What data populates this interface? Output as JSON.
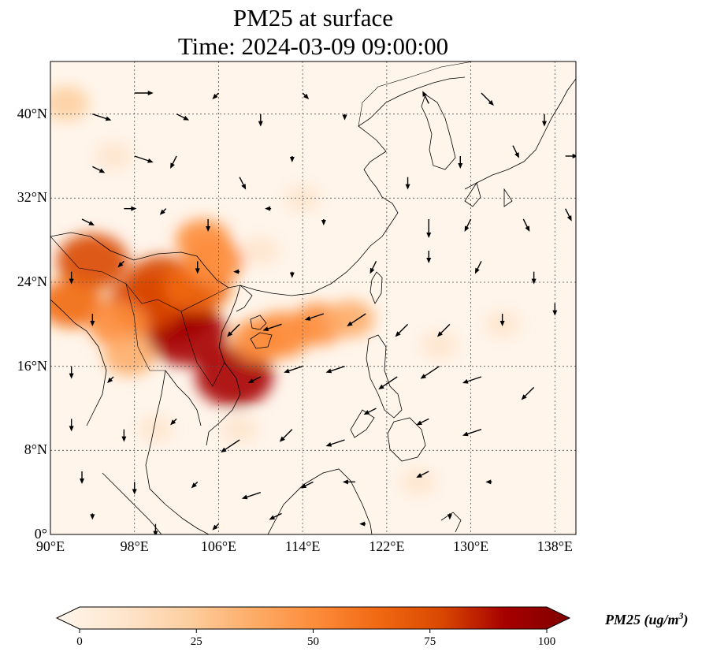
{
  "title": {
    "line1": "PM25 at surface",
    "line2": "Time: 2024-03-09 09:00:00"
  },
  "map": {
    "projection": "PlateCarree",
    "lon_range": [
      90,
      140
    ],
    "lat_range": [
      0,
      45
    ],
    "gridlines": true,
    "lat_ticks": [
      {
        "value": 0,
        "label": "0°"
      },
      {
        "value": 8,
        "label": "8°N"
      },
      {
        "value": 16,
        "label": "16°N"
      },
      {
        "value": 24,
        "label": "24°N"
      },
      {
        "value": 32,
        "label": "32°N"
      },
      {
        "value": 40,
        "label": "40°N"
      }
    ],
    "lon_ticks": [
      {
        "value": 90,
        "label": "90°E"
      },
      {
        "value": 98,
        "label": "98°E"
      },
      {
        "value": 106,
        "label": "106°E"
      },
      {
        "value": 114,
        "label": "114°E"
      },
      {
        "value": 122,
        "label": "122°E"
      },
      {
        "value": 130,
        "label": "130°E"
      },
      {
        "value": 138,
        "label": "138°E"
      }
    ],
    "pm25_plumes": [
      {
        "lon": 101.5,
        "lat": 21.5,
        "value": 100
      },
      {
        "lon": 103.0,
        "lat": 19.0,
        "value": 90
      },
      {
        "lon": 99.0,
        "lat": 22.0,
        "value": 80
      },
      {
        "lon": 100.5,
        "lat": 24.0,
        "value": 70
      },
      {
        "lon": 104.0,
        "lat": 23.5,
        "value": 65
      },
      {
        "lon": 105.5,
        "lat": 26.0,
        "value": 55
      },
      {
        "lon": 104.5,
        "lat": 28.0,
        "value": 45
      },
      {
        "lon": 107.5,
        "lat": 15.0,
        "value": 85
      },
      {
        "lon": 94.0,
        "lat": 26.0,
        "value": 75
      },
      {
        "lon": 92.0,
        "lat": 22.0,
        "value": 60
      },
      {
        "lon": 96.5,
        "lat": 20.0,
        "value": 55
      },
      {
        "lon": 97.5,
        "lat": 17.0,
        "value": 40
      },
      {
        "lon": 112.0,
        "lat": 19.0,
        "value": 55
      },
      {
        "lon": 115.5,
        "lat": 20.0,
        "value": 45
      },
      {
        "lon": 118.5,
        "lat": 20.5,
        "value": 35
      },
      {
        "lon": 110.0,
        "lat": 18.5,
        "value": 50
      },
      {
        "lon": 91.5,
        "lat": 41.0,
        "value": 30
      },
      {
        "lon": 96.0,
        "lat": 36.0,
        "value": 15
      },
      {
        "lon": 110.0,
        "lat": 27.0,
        "value": 15
      },
      {
        "lon": 114.0,
        "lat": 32.0,
        "value": 12
      },
      {
        "lon": 127.0,
        "lat": 18.0,
        "value": 15
      },
      {
        "lon": 133.0,
        "lat": 20.0,
        "value": 12
      },
      {
        "lon": 108.0,
        "lat": 10.0,
        "value": 15
      },
      {
        "lon": 100.0,
        "lat": 10.0,
        "value": 12
      },
      {
        "lon": 125.0,
        "lat": 5.0,
        "value": 12
      }
    ],
    "wind_arrows": [
      {
        "lon": 94,
        "lat": 40,
        "u": 3,
        "v": -1
      },
      {
        "lon": 98,
        "lat": 42,
        "u": 3,
        "v": 0
      },
      {
        "lon": 102,
        "lat": 40,
        "u": 2,
        "v": -1
      },
      {
        "lon": 106,
        "lat": 42,
        "u": -1,
        "v": -1
      },
      {
        "lon": 110,
        "lat": 40,
        "u": 0,
        "v": -2
      },
      {
        "lon": 114,
        "lat": 42,
        "u": 1,
        "v": -1
      },
      {
        "lon": 118,
        "lat": 40,
        "u": 0,
        "v": -1
      },
      {
        "lon": 126,
        "lat": 41,
        "u": -1,
        "v": 2
      },
      {
        "lon": 131,
        "lat": 42,
        "u": 2,
        "v": -2
      },
      {
        "lon": 137,
        "lat": 40,
        "u": 0,
        "v": -2
      },
      {
        "lon": 94,
        "lat": 35,
        "u": 2,
        "v": -1
      },
      {
        "lon": 98,
        "lat": 36,
        "u": 3,
        "v": -1
      },
      {
        "lon": 102,
        "lat": 36,
        "u": -1,
        "v": -2
      },
      {
        "lon": 108,
        "lat": 34,
        "u": 1,
        "v": -2
      },
      {
        "lon": 113,
        "lat": 36,
        "u": 0,
        "v": -1
      },
      {
        "lon": 124,
        "lat": 34,
        "u": 0,
        "v": -2
      },
      {
        "lon": 129,
        "lat": 36,
        "u": 0,
        "v": -2
      },
      {
        "lon": 134,
        "lat": 37,
        "u": 1,
        "v": -2
      },
      {
        "lon": 139,
        "lat": 36,
        "u": 2,
        "v": 0
      },
      {
        "lon": 93,
        "lat": 30,
        "u": 2,
        "v": -1
      },
      {
        "lon": 97,
        "lat": 31,
        "u": 2,
        "v": 0
      },
      {
        "lon": 101,
        "lat": 31,
        "u": -1,
        "v": -1
      },
      {
        "lon": 105,
        "lat": 30,
        "u": 0,
        "v": -2
      },
      {
        "lon": 111,
        "lat": 31,
        "u": -1,
        "v": 0
      },
      {
        "lon": 116,
        "lat": 30,
        "u": 0,
        "v": -1
      },
      {
        "lon": 126,
        "lat": 30,
        "u": 0,
        "v": -3
      },
      {
        "lon": 130,
        "lat": 30,
        "u": -1,
        "v": -2
      },
      {
        "lon": 135,
        "lat": 30,
        "u": 1,
        "v": -2
      },
      {
        "lon": 139,
        "lat": 31,
        "u": 1,
        "v": -2
      },
      {
        "lon": 92,
        "lat": 25,
        "u": 0,
        "v": -2
      },
      {
        "lon": 97,
        "lat": 26,
        "u": -1,
        "v": -1
      },
      {
        "lon": 104,
        "lat": 26,
        "u": 0,
        "v": -2
      },
      {
        "lon": 108,
        "lat": 25,
        "u": -1,
        "v": 0
      },
      {
        "lon": 113,
        "lat": 25,
        "u": 0,
        "v": -1
      },
      {
        "lon": 121,
        "lat": 26,
        "u": -1,
        "v": -2
      },
      {
        "lon": 126,
        "lat": 27,
        "u": 0,
        "v": -2
      },
      {
        "lon": 131,
        "lat": 26,
        "u": -1,
        "v": -2
      },
      {
        "lon": 136,
        "lat": 25,
        "u": 0,
        "v": -2
      },
      {
        "lon": 94,
        "lat": 21,
        "u": 0,
        "v": -2
      },
      {
        "lon": 108,
        "lat": 20,
        "u": -2,
        "v": -2
      },
      {
        "lon": 112,
        "lat": 20,
        "u": -3,
        "v": -1
      },
      {
        "lon": 116,
        "lat": 21,
        "u": -3,
        "v": -1
      },
      {
        "lon": 120,
        "lat": 21,
        "u": -3,
        "v": -2
      },
      {
        "lon": 124,
        "lat": 20,
        "u": -2,
        "v": -2
      },
      {
        "lon": 128,
        "lat": 20,
        "u": -2,
        "v": -2
      },
      {
        "lon": 133,
        "lat": 21,
        "u": 0,
        "v": -2
      },
      {
        "lon": 138,
        "lat": 22,
        "u": 0,
        "v": -2
      },
      {
        "lon": 92,
        "lat": 16,
        "u": 0,
        "v": -2
      },
      {
        "lon": 96,
        "lat": 15,
        "u": -1,
        "v": -1
      },
      {
        "lon": 110,
        "lat": 15,
        "u": -2,
        "v": -1
      },
      {
        "lon": 114,
        "lat": 16,
        "u": -3,
        "v": -1
      },
      {
        "lon": 118,
        "lat": 16,
        "u": -3,
        "v": -1
      },
      {
        "lon": 123,
        "lat": 15,
        "u": -3,
        "v": -2
      },
      {
        "lon": 127,
        "lat": 16,
        "u": -3,
        "v": -2
      },
      {
        "lon": 131,
        "lat": 15,
        "u": -3,
        "v": -1
      },
      {
        "lon": 136,
        "lat": 14,
        "u": -2,
        "v": -2
      },
      {
        "lon": 92,
        "lat": 11,
        "u": 0,
        "v": -2
      },
      {
        "lon": 97,
        "lat": 10,
        "u": 0,
        "v": -2
      },
      {
        "lon": 102,
        "lat": 11,
        "u": -1,
        "v": -1
      },
      {
        "lon": 108,
        "lat": 9,
        "u": -3,
        "v": -2
      },
      {
        "lon": 113,
        "lat": 10,
        "u": -2,
        "v": -2
      },
      {
        "lon": 118,
        "lat": 9,
        "u": -3,
        "v": -1
      },
      {
        "lon": 121,
        "lat": 12,
        "u": -2,
        "v": -1
      },
      {
        "lon": 126,
        "lat": 11,
        "u": -2,
        "v": -1
      },
      {
        "lon": 131,
        "lat": 10,
        "u": -3,
        "v": -1
      },
      {
        "lon": 93,
        "lat": 6,
        "u": 0,
        "v": -2
      },
      {
        "lon": 98,
        "lat": 5,
        "u": 0,
        "v": -2
      },
      {
        "lon": 104,
        "lat": 5,
        "u": -1,
        "v": -1
      },
      {
        "lon": 110,
        "lat": 4,
        "u": -3,
        "v": -1
      },
      {
        "lon": 115,
        "lat": 5,
        "u": -2,
        "v": -1
      },
      {
        "lon": 119,
        "lat": 5,
        "u": -2,
        "v": 0
      },
      {
        "lon": 126,
        "lat": 6,
        "u": -2,
        "v": -1
      },
      {
        "lon": 132,
        "lat": 5,
        "u": -1,
        "v": 0
      },
      {
        "lon": 94,
        "lat": 2,
        "u": 0,
        "v": -1
      },
      {
        "lon": 100,
        "lat": 1,
        "u": 0,
        "v": -2
      },
      {
        "lon": 106,
        "lat": 1,
        "u": -1,
        "v": -1
      },
      {
        "lon": 112,
        "lat": 2,
        "u": -2,
        "v": -1
      },
      {
        "lon": 120,
        "lat": 1,
        "u": -1,
        "v": 0
      },
      {
        "lon": 128,
        "lat": 2,
        "u": 0,
        "v": -1
      }
    ]
  },
  "colorbar": {
    "ticks": [
      "0",
      "25",
      "50",
      "75",
      "100"
    ],
    "label_main": "PM25 (ug/m",
    "label_sup": "3",
    "label_end": ")",
    "colors": [
      "#fff5eb",
      "#fee6ce",
      "#fdd0a2",
      "#fdae6b",
      "#fd8d3c",
      "#f16913",
      "#d94801",
      "#a60000",
      "#7f0000"
    ]
  },
  "colors": {
    "background": "#fff5eb",
    "coastline": "#000000",
    "gridline": "#555555",
    "arrow": "#000000"
  }
}
